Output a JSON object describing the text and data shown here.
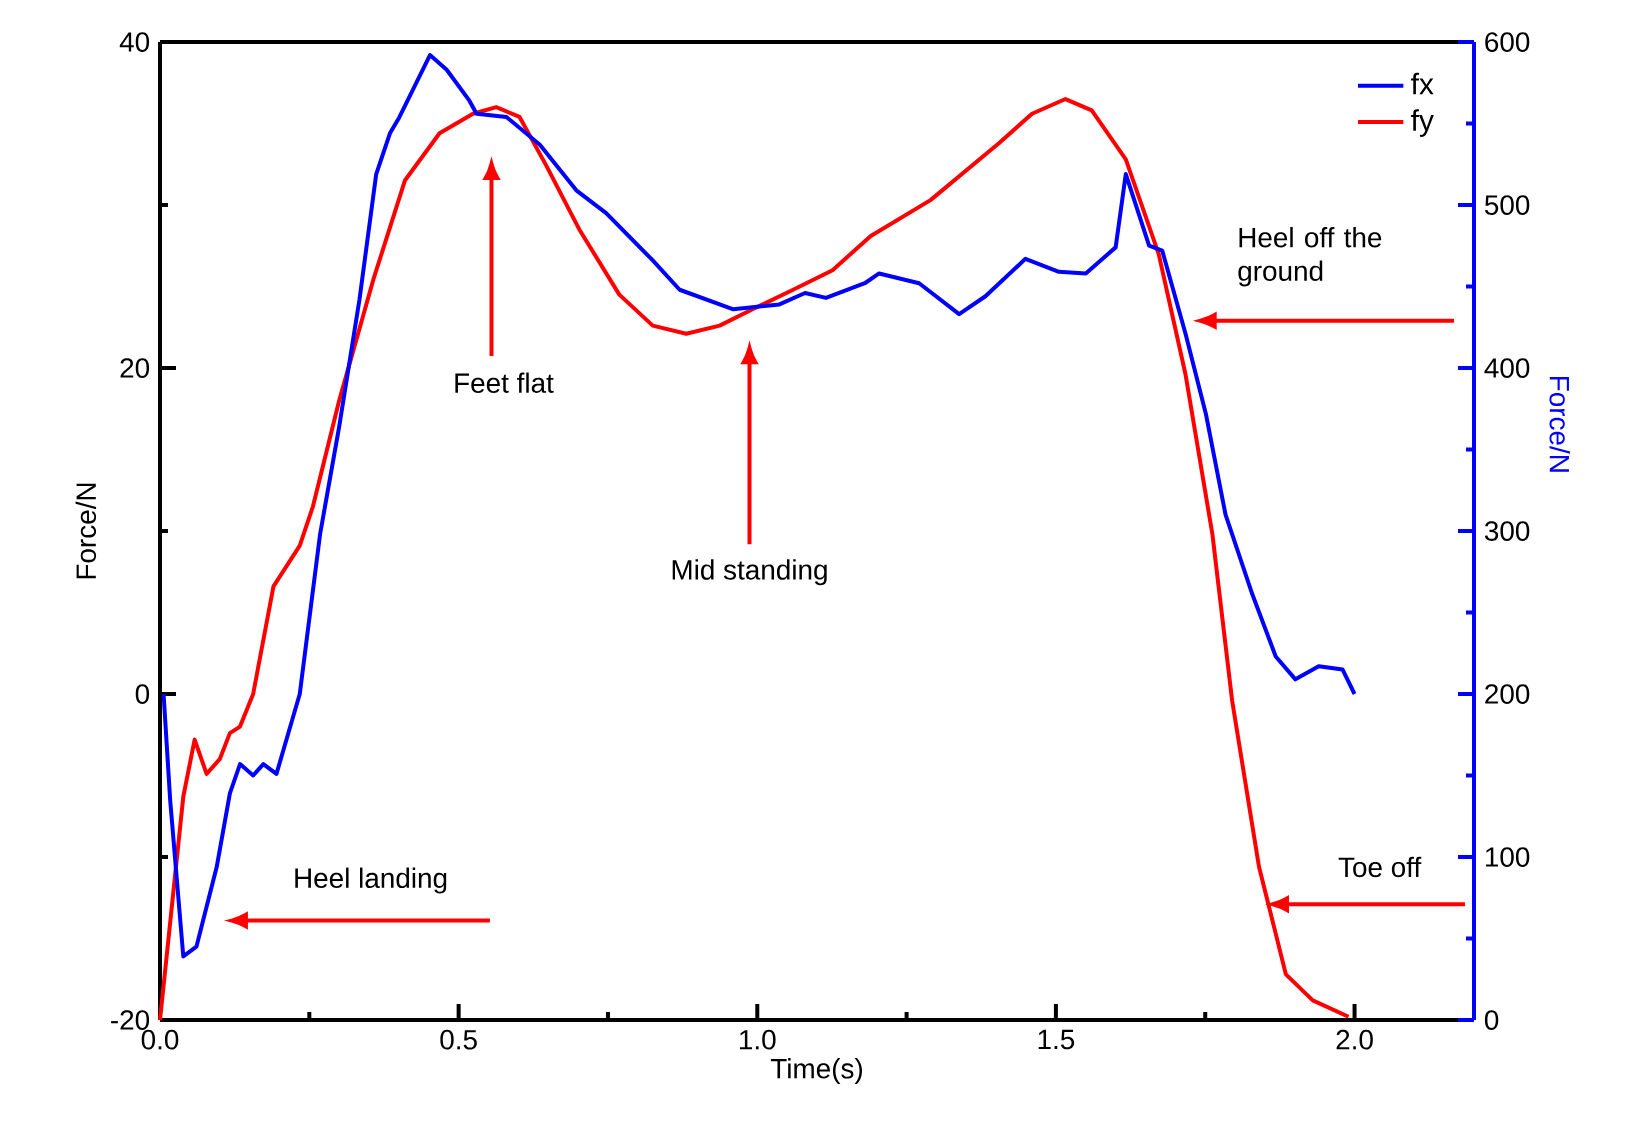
{
  "chart_data": {
    "type": "line",
    "xlabel": "Time(s)",
    "ylabel": "Force/N",
    "y2label": "Force/N",
    "xlim": [
      0,
      2.2
    ],
    "xticks": [
      {
        "value": 0,
        "label": "0.0"
      },
      {
        "value": 0.5,
        "label": "0.5"
      },
      {
        "value": 1,
        "label": "1.0"
      },
      {
        "value": 1.5,
        "label": "1.5"
      },
      {
        "value": 2,
        "label": "2.0"
      }
    ],
    "ylim": [
      -20,
      40
    ],
    "yticks": [
      -20,
      0,
      20,
      40
    ],
    "y2lim": [
      0,
      600
    ],
    "y2ticks": [
      0,
      100,
      200,
      300,
      400,
      500,
      600
    ],
    "legend": "top right",
    "grid": false,
    "marker": "none",
    "line_style": "solid",
    "series": [
      {
        "name": "fx",
        "color": "#0000ff",
        "axis": "y2",
        "x": [
          0.006,
          0.017,
          0.039,
          0.061,
          0.095,
          0.117,
          0.134,
          0.156,
          0.173,
          0.195,
          0.234,
          0.268,
          0.3,
          0.334,
          0.362,
          0.385,
          0.401,
          0.452,
          0.48,
          0.518,
          0.53,
          0.58,
          0.636,
          0.697,
          0.747,
          0.825,
          0.87,
          0.96,
          1.037,
          1.08,
          1.115,
          1.18,
          1.204,
          1.271,
          1.338,
          1.382,
          1.449,
          1.505,
          1.55,
          1.6,
          1.617,
          1.656,
          1.678,
          1.717,
          1.751,
          1.784,
          1.829,
          1.868,
          1.901,
          1.94,
          1.98,
          2.0
        ],
        "values": [
          200,
          135,
          39,
          45,
          94,
          139,
          157,
          150,
          157,
          151,
          200,
          298,
          364,
          442,
          519,
          544,
          554,
          592,
          583,
          564,
          556,
          554,
          537,
          509,
          495,
          466,
          448,
          436,
          439,
          446,
          443,
          452,
          458,
          452,
          433,
          444,
          467,
          459,
          458,
          474,
          519,
          475,
          472,
          421,
          372,
          310,
          261,
          223,
          209,
          217,
          215,
          200
        ]
      },
      {
        "name": "fy",
        "color": "#ff0000",
        "axis": "y",
        "x": [
          0,
          0.039,
          0.058,
          0.078,
          0.1,
          0.117,
          0.134,
          0.156,
          0.19,
          0.234,
          0.256,
          0.3,
          0.357,
          0.41,
          0.468,
          0.524,
          0.563,
          0.602,
          0.647,
          0.702,
          0.769,
          0.825,
          0.881,
          0.937,
          0.992,
          1.06,
          1.126,
          1.19,
          1.29,
          1.405,
          1.46,
          1.516,
          1.56,
          1.617,
          1.672,
          1.717,
          1.762,
          1.795,
          1.84,
          1.885,
          1.93,
          1.99
        ],
        "values": [
          -20,
          -6.3,
          -2.8,
          -4.9,
          -4.0,
          -2.4,
          -2.0,
          0,
          6.6,
          9.1,
          11.5,
          18.0,
          25.4,
          31.5,
          34.4,
          35.6,
          36.0,
          35.4,
          32.4,
          28.5,
          24.5,
          22.6,
          22.1,
          22.6,
          23.6,
          24.8,
          26.0,
          28.1,
          30.3,
          33.8,
          35.6,
          36.5,
          35.8,
          32.8,
          27.0,
          19.6,
          9.8,
          -0.4,
          -10.6,
          -17.2,
          -18.8,
          -19.8
        ]
      }
    ],
    "annotations": [
      "Heel landing",
      "Feet flat",
      "Mid standing",
      "Heel off the ground",
      "Toe off"
    ]
  }
}
